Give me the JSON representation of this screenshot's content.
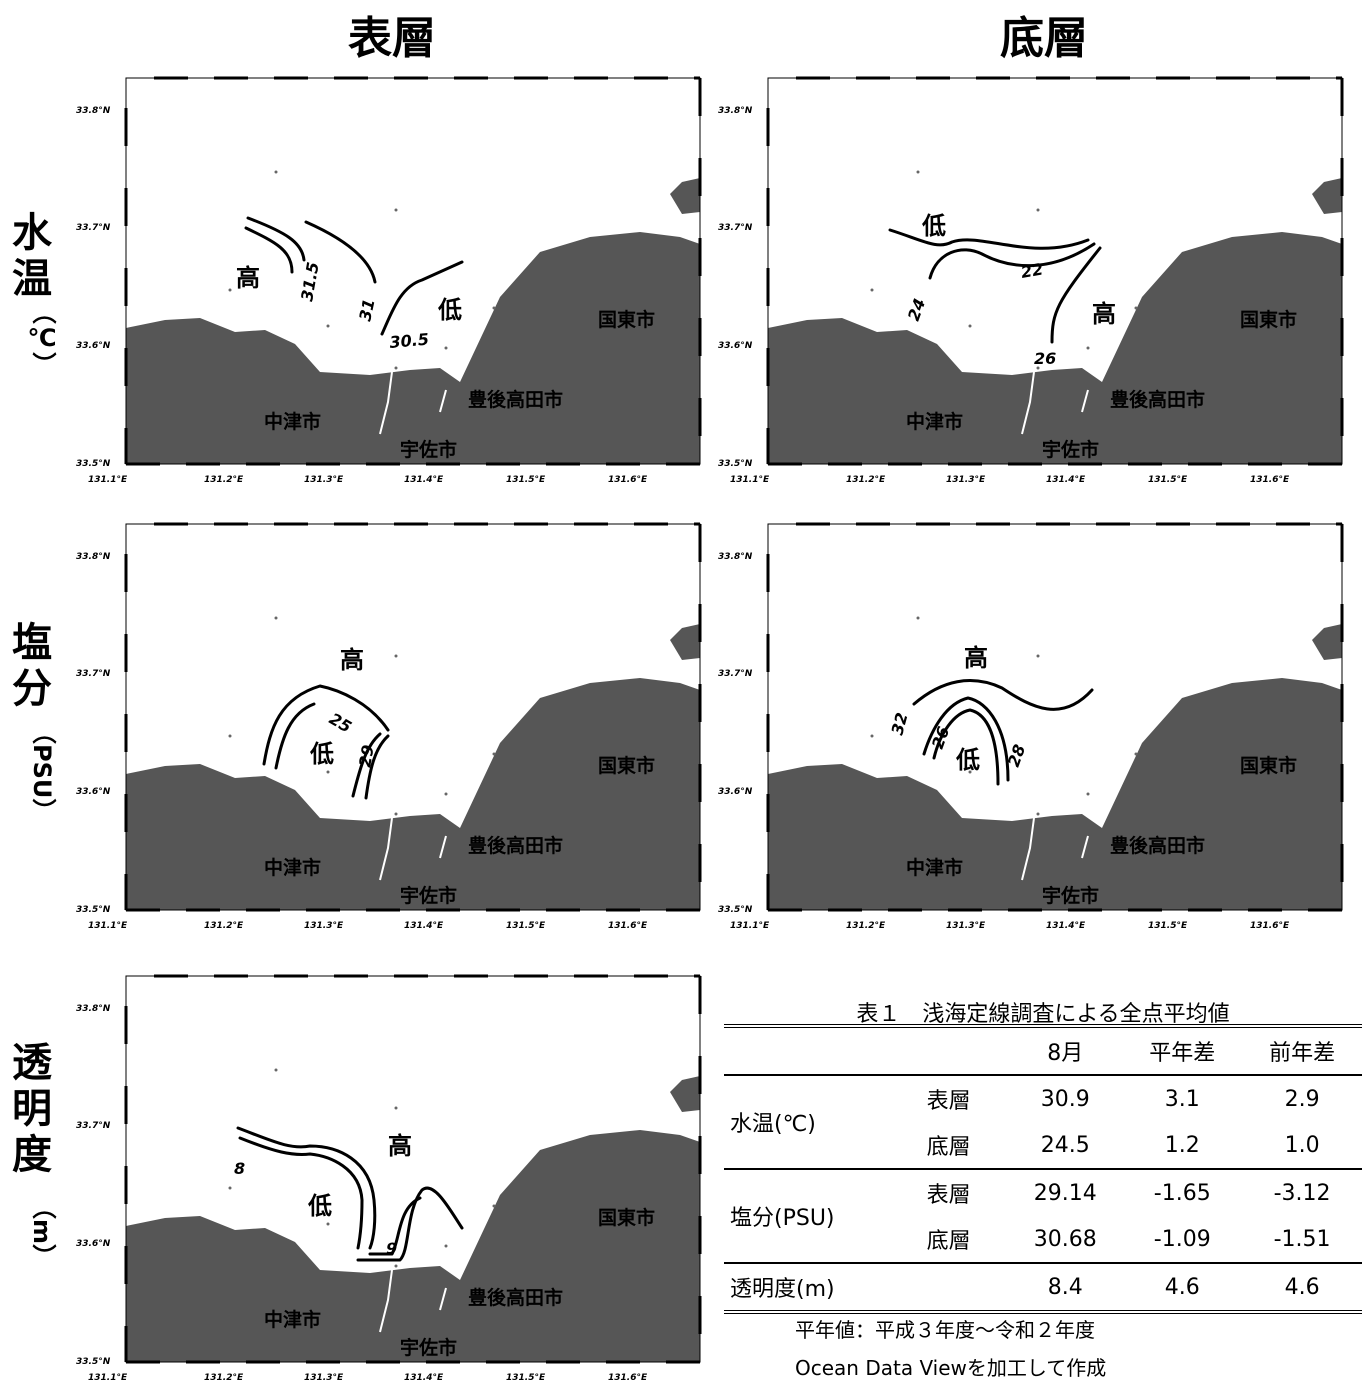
{
  "columns": {
    "surface": "表層",
    "bottom": "底層"
  },
  "rows": [
    {
      "label": "水温",
      "unit": "（℃）"
    },
    {
      "label": "塩分",
      "unit": "（PSU）"
    },
    {
      "label": "透明度",
      "unit": "（m）"
    }
  ],
  "map_axis": {
    "lat_labels": [
      "33.8°N",
      "33.7°N",
      "33.6°N",
      "33.5°N"
    ],
    "lon_labels": [
      "131.1°E",
      "131.2°E",
      "131.3°E",
      "131.4°E",
      "131.5°E",
      "131.6°E"
    ]
  },
  "places": {
    "nakatsu": "中津市",
    "usa": "宇佐市",
    "bungotakada": "豊後高田市",
    "kunisaki": "国東市"
  },
  "markers": {
    "high": "高",
    "low": "低"
  },
  "maps": {
    "temp_surface": {
      "contours": [
        "31.5",
        "31",
        "30.5"
      ]
    },
    "temp_bottom": {
      "contours": [
        "22",
        "24",
        "26"
      ]
    },
    "sal_surface": {
      "contours": [
        "25",
        "29"
      ]
    },
    "sal_bottom": {
      "contours": [
        "32",
        "26",
        "28"
      ]
    },
    "trans_surface": {
      "contours": [
        "8",
        "9"
      ]
    }
  },
  "table": {
    "caption": "表１　浅海定線調査による全点平均値",
    "headers": [
      "",
      "",
      "8月",
      "平年差",
      "前年差"
    ],
    "groups": [
      {
        "label": "水温(℃)",
        "rows": [
          {
            "layer": "表層",
            "values": [
              "30.9",
              "3.1",
              "2.9"
            ]
          },
          {
            "layer": "底層",
            "values": [
              "24.5",
              "1.2",
              "1.0"
            ]
          }
        ]
      },
      {
        "label": "塩分(PSU)",
        "rows": [
          {
            "layer": "表層",
            "values": [
              "29.14",
              "-1.65",
              "-3.12"
            ]
          },
          {
            "layer": "底層",
            "values": [
              "30.68",
              "-1.09",
              "-1.51"
            ]
          }
        ]
      },
      {
        "label": "透明度(m)",
        "rows": [
          {
            "layer": "",
            "values": [
              "8.4",
              "4.6",
              "4.6"
            ]
          }
        ]
      }
    ]
  },
  "notes": [
    "平年値：平成３年度～令和２年度",
    "Ocean Data Viewを加工して作成"
  ],
  "colors": {
    "land": "#565656",
    "sea": "#ffffff",
    "contour": "#000000"
  }
}
